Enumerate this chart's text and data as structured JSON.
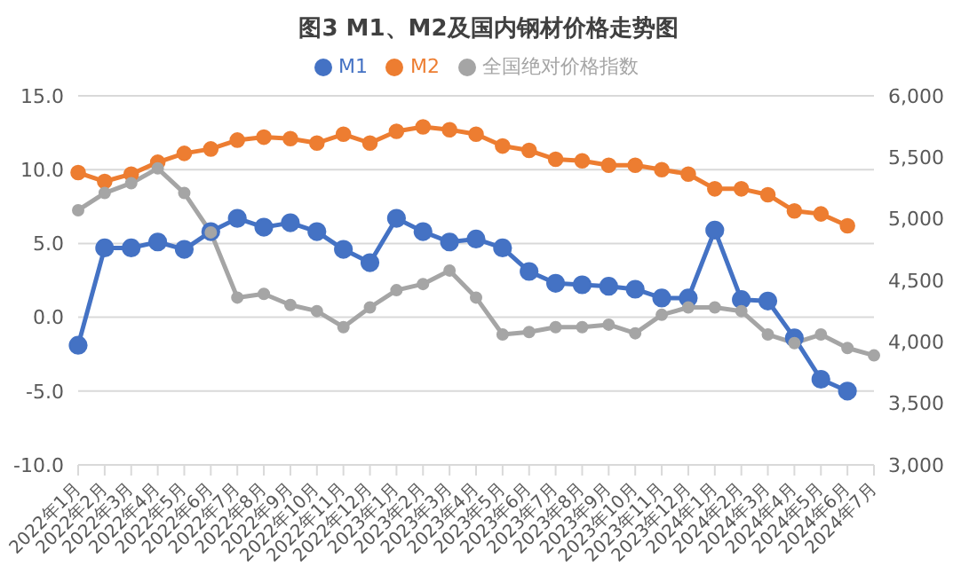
{
  "chart_data": {
    "type": "line",
    "title": "图3 M1、M2及国内钢材价格走势图",
    "categories": [
      "2022年1月",
      "2022年2月",
      "2022年3月",
      "2022年4月",
      "2022年5月",
      "2022年6月",
      "2022年7月",
      "2022年8月",
      "2022年9月",
      "2022年10月",
      "2022年11月",
      "2022年12月",
      "2023年1月",
      "2023年2月",
      "2023年3月",
      "2023年4月",
      "2023年5月",
      "2023年6月",
      "2023年7月",
      "2023年8月",
      "2023年9月",
      "2023年10月",
      "2023年11月",
      "2023年12月",
      "2024年1月",
      "2024年2月",
      "2024年3月",
      "2024年4月",
      "2024年5月",
      "2024年6月",
      "2024年7月"
    ],
    "series": [
      {
        "name": "M1",
        "color": "#4472c4",
        "values": [
          -1.9,
          4.7,
          4.7,
          5.1,
          4.6,
          5.8,
          6.7,
          6.1,
          6.4,
          5.8,
          4.6,
          3.7,
          6.7,
          5.8,
          5.1,
          5.3,
          4.7,
          3.1,
          2.3,
          2.2,
          2.1,
          1.9,
          1.3,
          1.3,
          5.9,
          1.2,
          1.1,
          -1.4,
          -4.2,
          -5.0,
          null
        ]
      },
      {
        "name": "M2",
        "color": "#ed7d31",
        "values": [
          9.8,
          9.2,
          9.7,
          10.5,
          11.1,
          11.4,
          12.0,
          12.2,
          12.1,
          11.8,
          12.4,
          11.8,
          12.6,
          12.9,
          12.7,
          12.4,
          11.6,
          11.3,
          10.7,
          10.6,
          10.3,
          10.3,
          10.0,
          9.7,
          8.7,
          8.7,
          8.3,
          7.2,
          7.0,
          6.2,
          null
        ]
      },
      {
        "name": "全国绝对价格指数",
        "color": "#a5a5a5",
        "axis": "y2",
        "values": [
          5070,
          5210,
          5290,
          5410,
          5210,
          4890,
          4360,
          4390,
          4300,
          4250,
          4120,
          4280,
          4420,
          4470,
          4580,
          4360,
          4060,
          4080,
          4120,
          4120,
          4140,
          4070,
          4220,
          4280,
          4280,
          4250,
          4060,
          3990,
          4060,
          3950,
          3890
        ]
      }
    ],
    "ylim": [
      -10,
      15
    ],
    "yticks": [
      {
        "value": -10,
        "label": "-10.0"
      },
      {
        "value": -5,
        "label": "-5.0"
      },
      {
        "value": 0,
        "label": "0.0"
      },
      {
        "value": 5,
        "label": "5.0"
      },
      {
        "value": 10,
        "label": "10.0"
      },
      {
        "value": 15,
        "label": "15.0"
      }
    ],
    "y2lim": [
      3000,
      6000
    ],
    "y2ticks": [
      {
        "value": 3000,
        "label": "3,000"
      },
      {
        "value": 3500,
        "label": "3,500"
      },
      {
        "value": 4000,
        "label": "4,000"
      },
      {
        "value": 4500,
        "label": "4,500"
      },
      {
        "value": 5000,
        "label": "5,000"
      },
      {
        "value": 5500,
        "label": "5,500"
      },
      {
        "value": 6000,
        "label": "6,000"
      }
    ],
    "grid": "y",
    "legend": "top",
    "marker": "circle",
    "line_style": "solid"
  }
}
